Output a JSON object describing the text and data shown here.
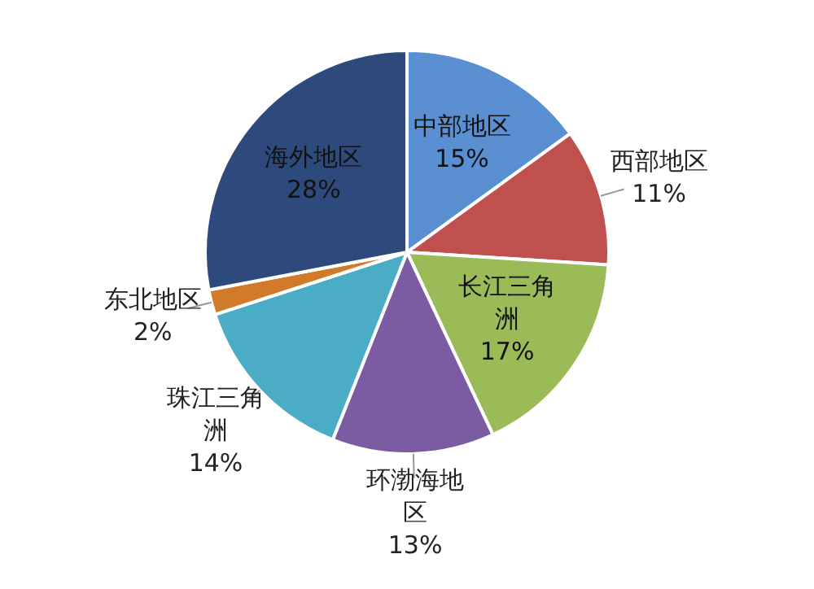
{
  "chart_data": {
    "type": "pie",
    "categories": [
      "中部地区",
      "西部地区",
      "长江三角洲",
      "环渤海地区",
      "珠江三角洲",
      "东北地区",
      "海外地区"
    ],
    "values": [
      15,
      11,
      17,
      13,
      14,
      2,
      28
    ],
    "colors": [
      "#5a8fd2",
      "#c0504d",
      "#9bbb59",
      "#7b5ba1",
      "#4bacc6",
      "#d07a2a",
      "#2e4a7c"
    ],
    "value_labels": [
      "15%",
      "11%",
      "17%",
      "13%",
      "14%",
      "2%",
      "28%"
    ]
  }
}
